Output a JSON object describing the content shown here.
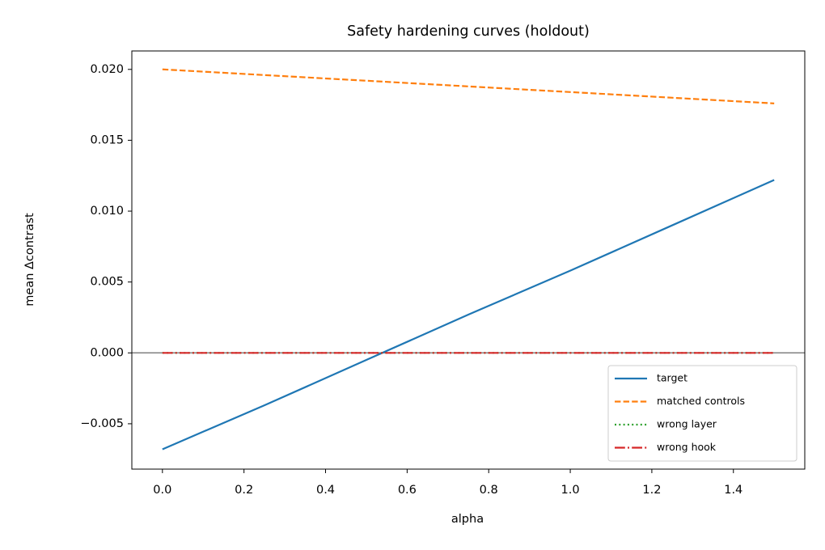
{
  "chart_data": {
    "type": "line",
    "title": "Safety hardening curves (holdout)",
    "xlabel": "alpha",
    "ylabel": "mean Δcontrast",
    "x": [
      0,
      0.25,
      0.5,
      0.75,
      1.0,
      1.25,
      1.5
    ],
    "series": [
      {
        "name": "target",
        "color": "#1f77b4",
        "dash": "solid",
        "values": [
          -0.0068,
          -0.0037,
          -0.0005,
          0.0027,
          0.0058,
          0.009,
          0.0122
        ]
      },
      {
        "name": "matched controls",
        "color": "#ff7f0e",
        "dash": "dashed",
        "values": [
          0.02,
          0.0196,
          0.0192,
          0.0188,
          0.0184,
          0.018,
          0.0176
        ]
      },
      {
        "name": "wrong layer",
        "color": "#2ca02c",
        "dash": "dotted",
        "values": [
          0,
          0,
          0,
          0,
          0,
          0,
          0
        ]
      },
      {
        "name": "wrong hook",
        "color": "#d62728",
        "dash": "dashdot",
        "values": [
          0,
          0,
          0,
          0,
          0,
          0,
          0
        ]
      }
    ],
    "hline": 0,
    "hline_color": "#808080",
    "xlim": [
      -0.075,
      1.575
    ],
    "ylim": [
      -0.0082,
      0.0213
    ],
    "xticks": [
      {
        "value": 0,
        "label": "0.0"
      },
      {
        "value": 0.2,
        "label": "0.2"
      },
      {
        "value": 0.4,
        "label": "0.4"
      },
      {
        "value": 0.6,
        "label": "0.6"
      },
      {
        "value": 0.8,
        "label": "0.8"
      },
      {
        "value": 1.0,
        "label": "1.0"
      },
      {
        "value": 1.2,
        "label": "1.2"
      },
      {
        "value": 1.4,
        "label": "1.4"
      }
    ],
    "yticks": [
      {
        "value": -0.005,
        "label": "−0.005"
      },
      {
        "value": 0,
        "label": "0.000"
      },
      {
        "value": 0.005,
        "label": "0.005"
      },
      {
        "value": 0.01,
        "label": "0.010"
      },
      {
        "value": 0.015,
        "label": "0.015"
      },
      {
        "value": 0.02,
        "label": "0.020"
      }
    ],
    "legend": "lower right",
    "grid": false
  }
}
